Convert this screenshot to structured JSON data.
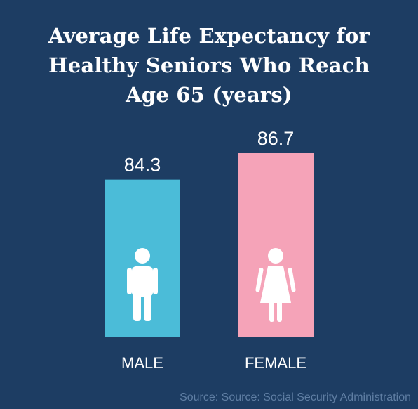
{
  "chart_data": {
    "type": "bar",
    "title": "Average Life Expectancy for\nHealthy Seniors Who Reach\nAge 65 (years)",
    "categories": [
      "MALE",
      "FEMALE"
    ],
    "values": [
      84.3,
      86.7
    ],
    "value_labels": [
      "84.3",
      "86.7"
    ],
    "icons": [
      "male-person-icon",
      "female-person-icon"
    ],
    "colors": [
      "#4bbcd8",
      "#f5a3b8"
    ],
    "xlabel": "",
    "ylabel": "",
    "axes_visible": false,
    "grid": false,
    "legend": "none"
  },
  "background_color": "#1d3d63",
  "source": "Source: Source: Social Security Administration"
}
